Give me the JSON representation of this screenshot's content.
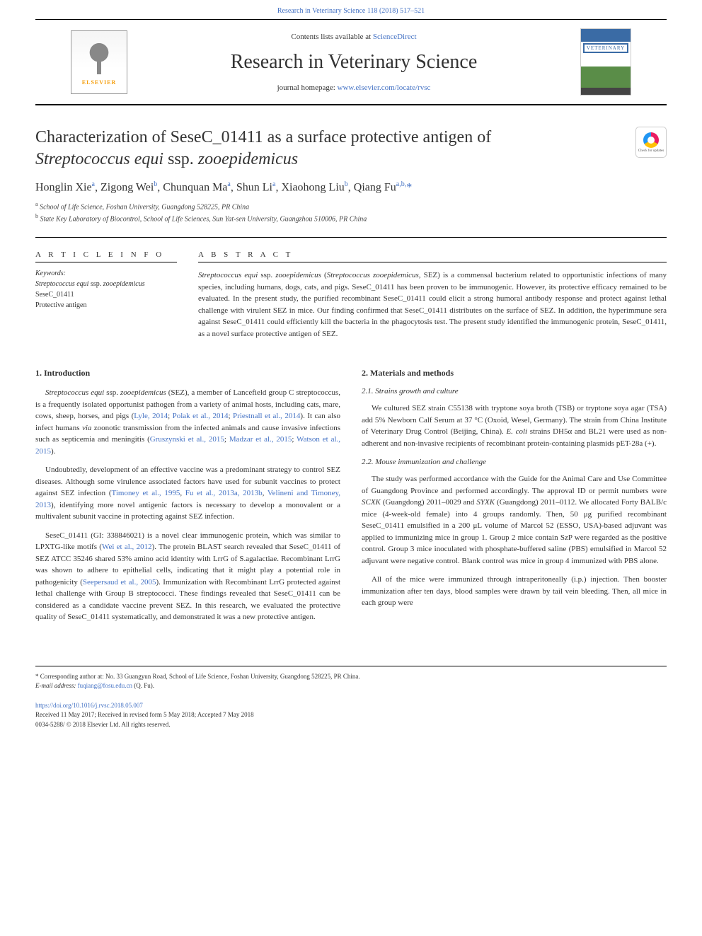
{
  "top_citation": "Research in Veterinary Science 118 (2018) 517–521",
  "header": {
    "contents_prefix": "Contents lists available at ",
    "contents_link": "ScienceDirect",
    "journal_name": "Research in Veterinary Science",
    "homepage_prefix": "journal homepage: ",
    "homepage_link": "www.elsevier.com/locate/rvsc",
    "publisher_label": "ELSEVIER",
    "cover_label": "VETERINARY"
  },
  "check_updates": "Check for updates",
  "title_line1": "Characterization of SeseC_01411 as a surface protective antigen of",
  "title_line2_italic": "Streptococcus equi",
  "title_line2_rest": " ssp. ",
  "title_line2_italic2": "zooepidemicus",
  "authors_html": "Honglin Xie<sup>a</sup>, Zigong Wei<sup>b</sup>, Chunquan Ma<sup>a</sup>, Shun Li<sup>a</sup>, Xiaohong Liu<sup>b</sup>, Qiang Fu<sup>a,b,</sup><span class='asterisk'>*</span>",
  "affiliations": [
    {
      "sup": "a",
      "text": "School of Life Science, Foshan University, Guangdong 528225, PR China"
    },
    {
      "sup": "b",
      "text": "State Key Laboratory of Biocontrol, School of Life Sciences, Sun Yat-sen University, Guangzhou 510006, PR China"
    }
  ],
  "article_info_heading": "A R T I C L E  I N F O",
  "abstract_heading": "A B S T R A C T",
  "keywords_label": "Keywords:",
  "keywords": [
    "<em>Streptococcus equi</em> ssp. <em>zooepidemicus</em>",
    "SeseC_01411",
    "Protective antigen"
  ],
  "abstract_text": "<em>Streptococcus equi</em> ssp. <em>zooepidemicus</em> (<em>Streptococcus zooepidemicus</em>, SEZ) is a commensal bacterium related to opportunistic infections of many species, including humans, dogs, cats, and pigs. SeseC_01411 has been proven to be immunogenic. However, its protective efficacy remained to be evaluated. In the present study, the purified recombinant SeseC_01411 could elicit a strong humoral antibody response and protect against lethal challenge with virulent SEZ in mice. Our finding confirmed that SeseC_01411 distributes on the surface of SEZ. In addition, the hyperimmune sera against SeseC_01411 could efficiently kill the bacteria in the phagocytosis test. The present study identified the immunogenic protein, SeseC_01411, as a novel surface protective antigen of SEZ.",
  "sections": {
    "intro_title": "1. Introduction",
    "intro_paras": [
      "<em>Streptococcus equi</em> ssp. <em>zooepidemicus</em> (SEZ), a member of Lancefield group C streptococcus, is a frequently isolated opportunist pathogen from a variety of animal hosts, including cats, mare, cows, sheep, horses, and pigs (<a>Lyle, 2014</a>; <a>Polak et al., 2014</a>; <a>Priestnall et al., 2014</a>). It can also infect humans <em>via</em> zoonotic transmission from the infected animals and cause invasive infections such as septicemia and meningitis (<a>Gruszynski et al., 2015</a>; <a>Madzar et al., 2015</a>; <a>Watson et al., 2015</a>).",
      "Undoubtedly, development of an effective vaccine was a predominant strategy to control SEZ diseases. Although some virulence associated factors have used for subunit vaccines to protect against SEZ infection (<a>Timoney et al., 1995</a>, <a>Fu et al., 2013a, 2013b</a>, <a>Velineni and Timoney, 2013</a>), identifying more novel antigenic factors is necessary to develop a monovalent or a multivalent subunit vaccine in protecting against SEZ infection.",
      "SeseC_01411 (GI: 338846021) is a novel clear immunogenic protein, which was similar to LPXTG-like motifs (<a>Wei et al., 2012</a>). The protein BLAST search revealed that SeseC_01411 of SEZ ATCC 35246 shared 53% amino acid identity with LrrG of S.agalactiae. Recombinant LrrG was shown to adhere to epithelial cells, indicating that it might play a potential role in pathogenicity (<a>Seepersaud et al., 2005</a>). Immunization with Recombinant LrrG protected against lethal challenge with Group B streptococci. These findings revealed that SeseC_01411 can be considered as a candidate vaccine prevent SEZ. In this research, we evaluated the protective quality of SeseC_01411 systematically, and demonstrated it was a new protective antigen."
    ],
    "mm_title": "2. Materials and methods",
    "sub21_title": "2.1. Strains growth and culture",
    "sub21_para": "We cultured SEZ strain C55138 with tryptone soya broth (TSB) or tryptone soya agar (TSA) add 5% Newborn Calf Serum at 37 °C (Oxoid, Wesel, Germany). The strain from China Institute of Veterinary Drug Control (Beijing, China). <em>E. coli</em> strains DH5α and BL21 were used as non-adherent and non-invasive recipients of recombinant protein-containing plasmids pET-28a (+).",
    "sub22_title": "2.2. Mouse immunization and challenge",
    "sub22_paras": [
      "The study was performed accordance with the Guide for the Animal Care and Use Committee of Guangdong Province and performed accordingly. The approval ID or permit numbers were <em>SCXK</em> (Guangdong) 2011–0029 and <em>SYXK</em> (Guangdong) 2011–0112. We allocated Forty BALB/c mice (4-week-old female) into 4 groups randomly. Then, 50 μg purified recombinant SeseC_01411 emulsified in a 200 μL volume of Marcol 52 (ESSO, USA)-based adjuvant was applied to immunizing mice in group 1. Group 2 mice contain SzP were regarded as the positive control. Group 3 mice inoculated with phosphate-buffered saline (PBS) emulsified in Marcol 52 adjuvant were negative control. Blank control was mice in group 4 immunized with PBS alone.",
      "All of the mice were immunized through intraperitoneally (i.p.) injection. Then booster immunization after ten days, blood samples were drawn by tail vein bleeding. Then, all mice in each group were"
    ]
  },
  "footer": {
    "corr_label": "* Corresponding author at: No. 33 Guangyun Road, School of Life Science, Foshan University, Guangdong 528225, PR China.",
    "email_label": "E-mail address: ",
    "email": "fuqiang@fosu.edu.cn",
    "email_suffix": " (Q. Fu).",
    "doi": "https://doi.org/10.1016/j.rvsc.2018.05.007",
    "received": "Received 11 May 2017; Received in revised form 5 May 2018; Accepted 7 May 2018",
    "copyright": "0034-5288/ © 2018 Elsevier Ltd. All rights reserved."
  },
  "colors": {
    "link": "#4472c4",
    "text": "#333333",
    "elsevier_orange": "#f59e0b",
    "cover_blue": "#3a6ba5",
    "cover_green": "#5a8d48"
  }
}
